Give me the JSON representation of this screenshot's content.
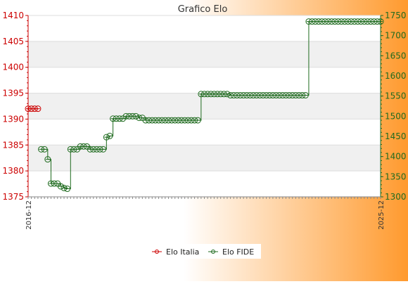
{
  "colors": {
    "background_left": "#ffffff",
    "background_right": "#ff9a2e",
    "left_axis": "#cc0000",
    "right_axis": "#1f6b1f",
    "series_italia": "#cc0000",
    "series_fide": "#1f6b1f",
    "band": "#f0f0f0",
    "grid": "#dddddd"
  },
  "chart_data": {
    "type": "line",
    "title": "Grafico Elo",
    "xlabel": "",
    "y_left": {
      "ticks": [
        1375,
        1380,
        1385,
        1390,
        1395,
        1400,
        1405,
        1410
      ],
      "ylim": [
        1375,
        1410
      ]
    },
    "y_right": {
      "ticks": [
        1300,
        1350,
        1400,
        1450,
        1500,
        1550,
        1600,
        1650,
        1700,
        1750
      ],
      "ylim": [
        1300,
        1750
      ]
    },
    "x_first_label": "2016-12",
    "x_last_label": "2025-12",
    "legend_position": "bottom",
    "series": [
      {
        "name": "Elo Italia",
        "axis": "left",
        "color": "#cc0000",
        "start_index": 0,
        "values": [
          1392,
          1392,
          1392,
          1392
        ]
      },
      {
        "name": "Elo FIDE",
        "axis": "right",
        "color": "#1f6b1f",
        "start_index": 4,
        "values": [
          1418,
          1418,
          1393,
          1333,
          1333,
          1333,
          1326,
          1322,
          1320,
          1418,
          1418,
          1418,
          1425,
          1425,
          1425,
          1418,
          1418,
          1418,
          1418,
          1418,
          1448,
          1451,
          1494,
          1494,
          1494,
          1494,
          1500,
          1500,
          1500,
          1500,
          1496,
          1496,
          1490,
          1490,
          1490,
          1490,
          1490,
          1490,
          1490,
          1490,
          1490,
          1490,
          1490,
          1490,
          1490,
          1490,
          1490,
          1490,
          1490,
          1555,
          1555,
          1555,
          1555,
          1555,
          1555,
          1555,
          1555,
          1555,
          1552,
          1552,
          1552,
          1552,
          1552,
          1552,
          1552,
          1552,
          1552,
          1552,
          1552,
          1552,
          1552,
          1552,
          1552,
          1552,
          1552,
          1552,
          1552,
          1552,
          1552,
          1552,
          1552,
          1552,
          1735,
          1735,
          1735,
          1735,
          1735,
          1735,
          1735,
          1735,
          1735,
          1735,
          1735,
          1735,
          1735,
          1735,
          1735,
          1735,
          1735,
          1735,
          1735,
          1735,
          1735,
          1735,
          1735
        ]
      }
    ]
  }
}
